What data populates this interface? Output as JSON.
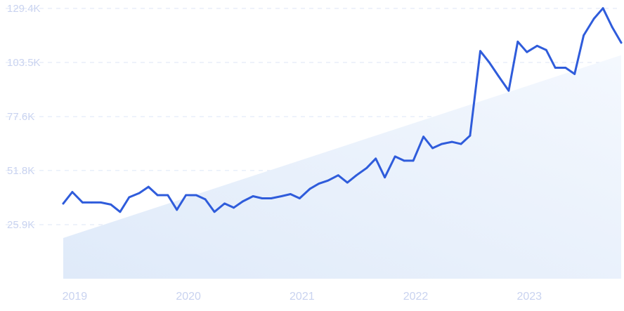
{
  "chart_data": {
    "type": "line",
    "title": "",
    "xlabel": "",
    "ylabel": "",
    "yticks": [
      "129.4K",
      "103.5K",
      "77.6K",
      "51.8K",
      "25.9K"
    ],
    "ytick_values": [
      129400,
      103500,
      77600,
      51800,
      25900
    ],
    "xticks": [
      "2019",
      "2020",
      "2021",
      "2022",
      "2023"
    ],
    "xtick_values": [
      2019.0,
      2020.0,
      2021.0,
      2022.0,
      2023.0
    ],
    "ylim": [
      0,
      129400
    ],
    "xlim": [
      2018.88,
      2023.79
    ],
    "grid": true,
    "trend": {
      "start": 19500,
      "end": 107000
    },
    "colors": {
      "line": "#2f5cdb",
      "trend_fill": "#e3eefb",
      "grid": "#dde6f6",
      "tick_text": "#c9d3f0"
    },
    "series": [
      {
        "x": [
          2018.88,
          2018.96,
          2019.05,
          2019.13,
          2019.21,
          2019.3,
          2019.38,
          2019.46,
          2019.55,
          2019.63,
          2019.71,
          2019.8,
          2019.88,
          2019.96,
          2020.05,
          2020.13,
          2020.21,
          2020.3,
          2020.38,
          2020.46,
          2020.55,
          2020.63,
          2020.71,
          2020.8,
          2020.88,
          2020.96,
          2021.05,
          2021.13,
          2021.21,
          2021.3,
          2021.38,
          2021.46,
          2021.55,
          2021.63,
          2021.71,
          2021.8,
          2021.88,
          2021.96,
          2022.05,
          2022.13,
          2022.21,
          2022.3,
          2022.38,
          2022.46,
          2022.55,
          2022.63,
          2022.71,
          2022.8,
          2022.88,
          2022.96,
          2023.05,
          2023.13,
          2023.21,
          2023.3,
          2023.38,
          2023.46,
          2023.55,
          2023.63,
          2023.71,
          2023.79
        ],
        "values": [
          36000,
          41500,
          36500,
          36500,
          36500,
          35500,
          32000,
          39000,
          41000,
          44000,
          40000,
          40000,
          33000,
          40000,
          40000,
          38000,
          32000,
          36000,
          34000,
          37000,
          39500,
          38500,
          38500,
          39500,
          40500,
          38500,
          43000,
          45500,
          47000,
          49500,
          46000,
          49500,
          53000,
          57500,
          48500,
          58500,
          56500,
          56500,
          68000,
          62500,
          64500,
          65500,
          64500,
          68500,
          109000,
          103500,
          97000,
          90000,
          113500,
          108500,
          111500,
          109500,
          101000,
          101000,
          98000,
          116500,
          124500,
          129500,
          120500,
          113000
        ]
      }
    ]
  }
}
